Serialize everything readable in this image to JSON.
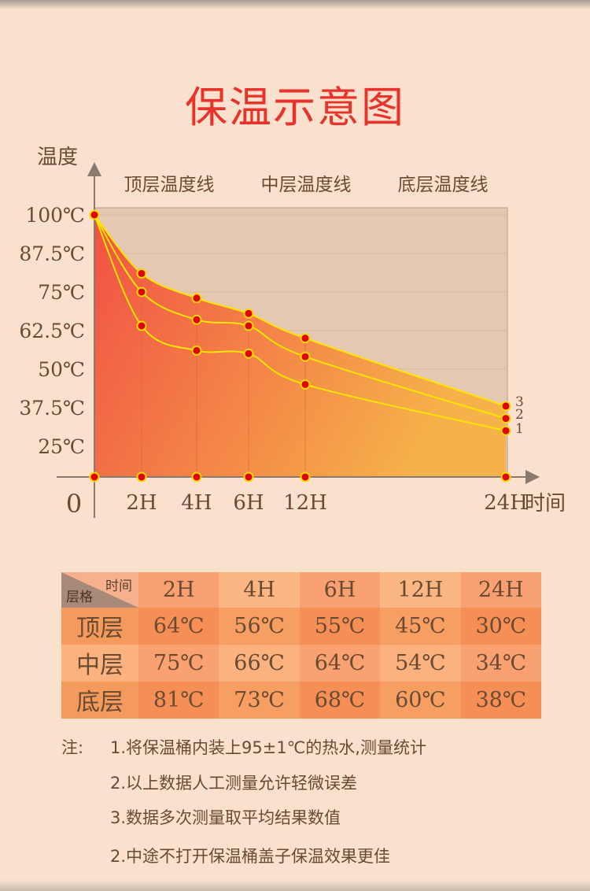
{
  "title": "保温示意图",
  "colors": {
    "title": "#e8322a",
    "curve": "#ffe600",
    "marker_fill": "#e00000",
    "marker_stroke": "#ffd800",
    "fill_left": "#f15144",
    "fill_right": "#f6b24a",
    "plot_bg": "#e5c8b1",
    "text": "#6b4a32"
  },
  "chart_data": {
    "type": "line",
    "title": "保温示意图",
    "ylabel": "温度",
    "xlabel": "时间",
    "origin_label": "0",
    "x": [
      "0",
      "2H",
      "4H",
      "6H",
      "12H",
      "24H"
    ],
    "x_tick_labels": [
      "2H",
      "4H",
      "6H",
      "12H",
      "24H"
    ],
    "y_tick_labels": [
      "100℃",
      "87.5℃",
      "75℃",
      "62.5℃",
      "50℃",
      "37.5℃",
      "25℃"
    ],
    "ylim": [
      15,
      100
    ],
    "grid": true,
    "legend": [
      "顶层温度线",
      "中层温度线",
      "底层温度线"
    ],
    "series": [
      {
        "name": "3",
        "values": [
          100,
          81,
          73,
          68,
          60,
          38
        ]
      },
      {
        "name": "2",
        "values": [
          100,
          75,
          66,
          64,
          54,
          34
        ]
      },
      {
        "name": "1",
        "values": [
          100,
          64,
          56,
          55,
          45,
          30
        ]
      }
    ]
  },
  "table": {
    "corner_top": "时间",
    "corner_bottom": "层格",
    "columns": [
      "2H",
      "4H",
      "6H",
      "12H",
      "24H"
    ],
    "rows": [
      {
        "label": "顶层",
        "values": [
          "64℃",
          "56℃",
          "55℃",
          "45℃",
          "30℃"
        ]
      },
      {
        "label": "中层",
        "values": [
          "75℃",
          "66℃",
          "64℃",
          "54℃",
          "34℃"
        ]
      },
      {
        "label": "底层",
        "values": [
          "81℃",
          "73℃",
          "68℃",
          "60℃",
          "38℃"
        ]
      }
    ]
  },
  "notes": {
    "label": "注:",
    "items": [
      "1.将保温桶内装上95±1℃的热水,测量统计",
      "2.以上数据人工测量允许轻微误差",
      "3.数据多次测量取平均结果数值",
      "2.中途不打开保温桶盖子保温效果更佳"
    ]
  }
}
